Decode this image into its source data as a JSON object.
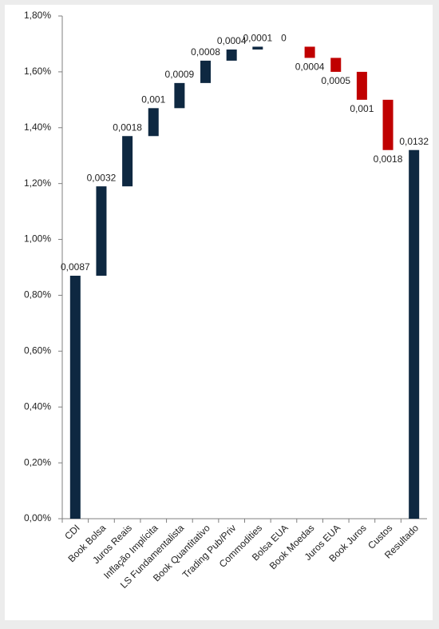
{
  "chart_data": {
    "type": "waterfall",
    "categories": [
      "CDI",
      "Book Bolsa",
      "Juros Reais",
      "Inflação Implícita",
      "LS Fundamentalista",
      "Book Quantitativo",
      "Trading Pub/Priv",
      "Commodities",
      "Bolsa EUA",
      "Book Moedas",
      "Juros EUA",
      "Book Juros",
      "Custos",
      "Resultado"
    ],
    "values": [
      0.0087,
      0.0032,
      0.0018,
      0.001,
      0.0009,
      0.0008,
      0.0004,
      0.0001,
      0,
      -0.0004,
      -0.0005,
      -0.001,
      -0.0018,
      0.0132
    ],
    "value_labels": [
      "0,0087",
      "0,0032",
      "0,0018",
      "0,001",
      "0,0009",
      "0,0008",
      "0,0004",
      "0,0001",
      "0",
      "0,0004",
      "0,0005",
      "0,001",
      "0,0018",
      "0,0132"
    ],
    "color": "#0e2841",
    "negative_color": "#c00000",
    "ylim": [
      0,
      0.018
    ],
    "yticks": [
      {
        "value": 0,
        "label": "0,00%"
      },
      {
        "value": 0.002,
        "label": "0,20%"
      },
      {
        "value": 0.004,
        "label": "0,40%"
      },
      {
        "value": 0.006,
        "label": "0,60%"
      },
      {
        "value": 0.008,
        "label": "0,80%"
      },
      {
        "value": 0.01,
        "label": "1,00%"
      },
      {
        "value": 0.012,
        "label": "1,20%"
      },
      {
        "value": 0.014,
        "label": "1,40%"
      },
      {
        "value": 0.016,
        "label": "1,60%"
      },
      {
        "value": 0.018,
        "label": "1,80%"
      }
    ]
  }
}
